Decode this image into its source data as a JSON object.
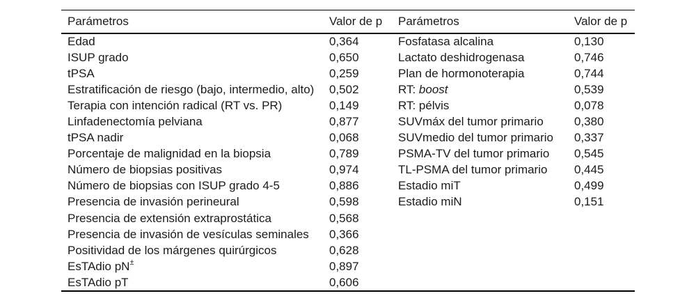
{
  "table": {
    "columns": {
      "param_label": "Parámetros",
      "value_label": "Valor de p"
    },
    "left_rows": [
      {
        "param": "Edad",
        "p": "0,364"
      },
      {
        "param": "ISUP grado",
        "p": "0,650"
      },
      {
        "param": "tPSA",
        "p": "0,259"
      },
      {
        "param": "Estratificación de riesgo (bajo, intermedio, alto)",
        "p": "0,502"
      },
      {
        "param": "Terapia con intención radical (RT vs. PR)",
        "p": "0,149"
      },
      {
        "param": "Linfadenectomía pelviana",
        "p": "0,877"
      },
      {
        "param": "tPSA nadir",
        "p": "0,068"
      },
      {
        "param": "Porcentaje de malignidad en la biopsia",
        "p": "0,789"
      },
      {
        "param": "Número de biopsias positivas",
        "p": "0,974"
      },
      {
        "param": "Número de biopsias con ISUP grado 4-5",
        "p": "0,886"
      },
      {
        "param": "Presencia de invasión perineural",
        "p": "0,598"
      },
      {
        "param": "Presencia de extensión extraprostática",
        "p": "0,568"
      },
      {
        "param": "Presencia de invasión de vesículas seminales",
        "p": "0,366"
      },
      {
        "param": "Positividad de los márgenes quirúrgicos",
        "p": "0,628"
      },
      {
        "param": "EsTAdio pN",
        "param_sup": "±",
        "p": "0,897"
      },
      {
        "param": "EsTAdio pT",
        "p": "0,606"
      }
    ],
    "right_rows": [
      {
        "param": "Fosfatasa alcalina",
        "p": "0,130"
      },
      {
        "param": "Lactato deshidrogenasa",
        "p": "0,746"
      },
      {
        "param": "Plan de hormonoterapia",
        "p": "0,744"
      },
      {
        "param": "RT: ",
        "param_italic": "boost",
        "p": "0,539"
      },
      {
        "param": "RT: pélvis",
        "p": "0,078"
      },
      {
        "param": "SUVmáx del tumor primario",
        "p": "0,380"
      },
      {
        "param": "SUVmedio del tumor primario",
        "p": "0,337"
      },
      {
        "param": "PSMA-TV del tumor primario",
        "p": "0,545"
      },
      {
        "param": "TL-PSMA del tumor primario",
        "p": "0,445"
      },
      {
        "param": "Estadio miT",
        "p": "0,499"
      },
      {
        "param": "Estadio miN",
        "p": "0,151"
      }
    ]
  },
  "colors": {
    "background": "#ffffff",
    "text": "#1b1b1b",
    "rule": "#000000"
  }
}
